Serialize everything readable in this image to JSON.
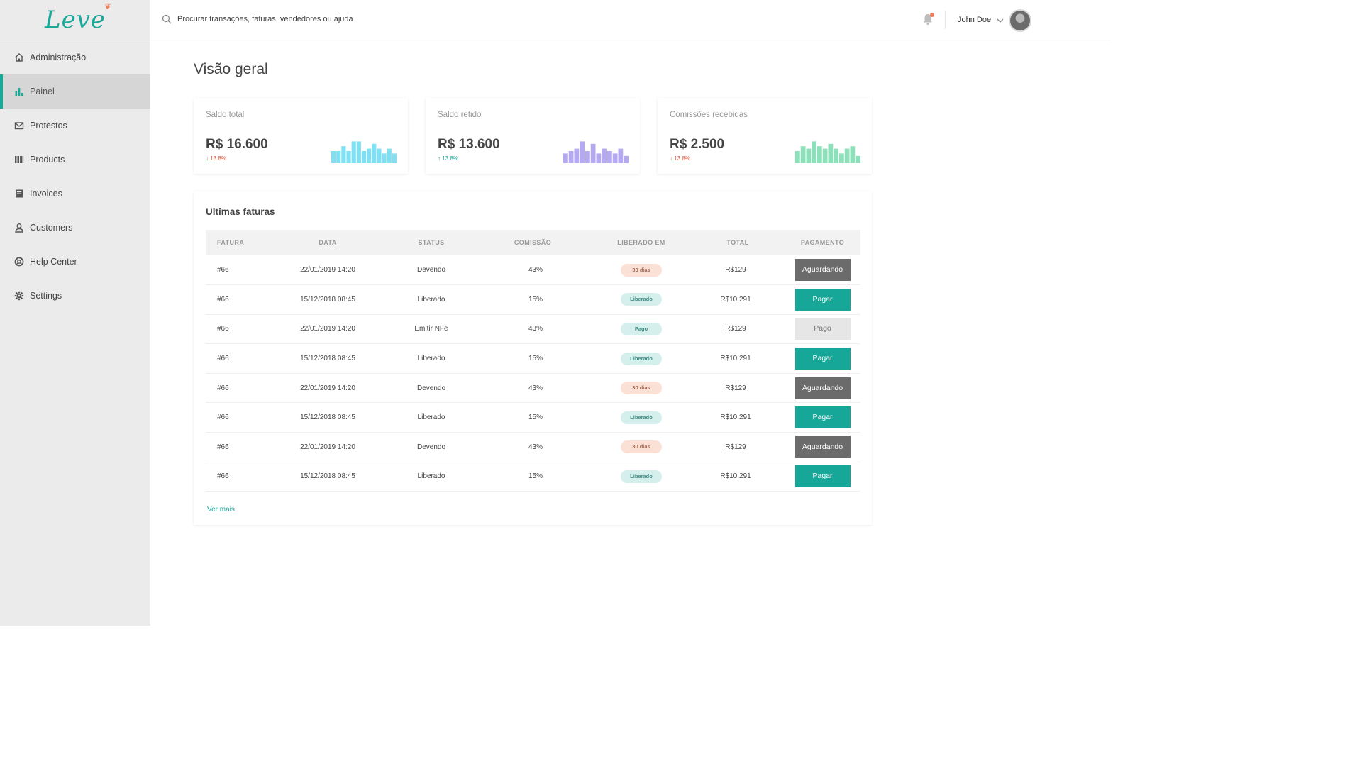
{
  "brand": {
    "logo_text": "Leve",
    "accent": "#19a99a",
    "alert": "#f07e5a"
  },
  "sidebar": {
    "items": [
      {
        "label": "Administração",
        "icon": "home-icon",
        "active": false
      },
      {
        "label": "Painel",
        "icon": "bar-chart-icon",
        "active": true
      },
      {
        "label": "Protestos",
        "icon": "mail-icon",
        "active": false
      },
      {
        "label": "Products",
        "icon": "barcode-icon",
        "active": false
      },
      {
        "label": "Invoices",
        "icon": "invoice-icon",
        "active": false
      },
      {
        "label": "Customers",
        "icon": "user-icon",
        "active": false
      },
      {
        "label": "Help Center",
        "icon": "lifebuoy-icon",
        "active": false
      },
      {
        "label": "Settings",
        "icon": "gear-icon",
        "active": false
      }
    ]
  },
  "topbar": {
    "search_placeholder": "Procurar transações, faturas, vendedores ou ajuda",
    "user_name": "John Doe"
  },
  "page": {
    "title": "Visão geral"
  },
  "cards": [
    {
      "title": "Saldo total",
      "value": "R$ 16.600",
      "delta": "13.8%",
      "trend": "down",
      "color": "#7ee0f2",
      "bars": [
        5,
        5,
        7,
        5,
        9,
        9,
        5,
        6,
        8,
        6,
        4,
        6,
        4
      ]
    },
    {
      "title": "Saldo retido",
      "value": "R$ 13.600",
      "delta": "13.8%",
      "trend": "up",
      "color": "#b5a9f0",
      "bars": [
        4,
        5,
        6,
        9,
        5,
        8,
        4,
        6,
        5,
        4,
        6,
        3
      ]
    },
    {
      "title": "Comissões recebidas",
      "value": "R$ 2.500",
      "delta": "13.8%",
      "trend": "down",
      "color": "#8de0ba",
      "bars": [
        5,
        7,
        6,
        9,
        7,
        6,
        8,
        6,
        4,
        6,
        7,
        3
      ]
    }
  ],
  "invoices": {
    "title": "Ultimas faturas",
    "headers": [
      "FATURA",
      "DATA",
      "STATUS",
      "COMISSÃO",
      "LIBERADO EM",
      "TOTAL",
      "PAGAMENTO"
    ],
    "rows": [
      {
        "fatura": "#66",
        "data": "22/01/2019 14:20",
        "status": "Devendo",
        "comissao": "43%",
        "liberado": "30 dias",
        "liberado_type": "wait",
        "total": "R$129",
        "pagamento": "Aguardando",
        "pay_type": "aguard"
      },
      {
        "fatura": "#66",
        "data": "15/12/2018 08:45",
        "status": "Liberado",
        "comissao": "15%",
        "liberado": "Liberado",
        "liberado_type": "ok",
        "total": "R$10.291",
        "pagamento": "Pagar",
        "pay_type": "pagar"
      },
      {
        "fatura": "#66",
        "data": "22/01/2019 14:20",
        "status": "Emitir NFe",
        "comissao": "43%",
        "liberado": "Pago",
        "liberado_type": "ok",
        "total": "R$129",
        "pagamento": "Pago",
        "pay_type": "pago"
      },
      {
        "fatura": "#66",
        "data": "15/12/2018 08:45",
        "status": "Liberado",
        "comissao": "15%",
        "liberado": "Liberado",
        "liberado_type": "ok",
        "total": "R$10.291",
        "pagamento": "Pagar",
        "pay_type": "pagar"
      },
      {
        "fatura": "#66",
        "data": "22/01/2019 14:20",
        "status": "Devendo",
        "comissao": "43%",
        "liberado": "30 dias",
        "liberado_type": "wait",
        "total": "R$129",
        "pagamento": "Aguardando",
        "pay_type": "aguard"
      },
      {
        "fatura": "#66",
        "data": "15/12/2018 08:45",
        "status": "Liberado",
        "comissao": "15%",
        "liberado": "Liberado",
        "liberado_type": "ok",
        "total": "R$10.291",
        "pagamento": "Pagar",
        "pay_type": "pagar"
      },
      {
        "fatura": "#66",
        "data": "22/01/2019 14:20",
        "status": "Devendo",
        "comissao": "43%",
        "liberado": "30 dias",
        "liberado_type": "wait",
        "total": "R$129",
        "pagamento": "Aguardando",
        "pay_type": "aguard"
      },
      {
        "fatura": "#66",
        "data": "15/12/2018 08:45",
        "status": "Liberado",
        "comissao": "15%",
        "liberado": "Liberado",
        "liberado_type": "ok",
        "total": "R$10.291",
        "pagamento": "Pagar",
        "pay_type": "pagar"
      }
    ],
    "more_link": "Ver mais"
  }
}
